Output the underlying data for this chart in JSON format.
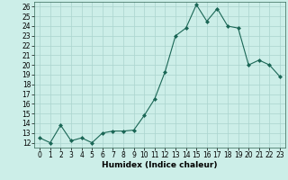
{
  "x": [
    0,
    1,
    2,
    3,
    4,
    5,
    6,
    7,
    8,
    9,
    10,
    11,
    12,
    13,
    14,
    15,
    16,
    17,
    18,
    19,
    20,
    21,
    22,
    23
  ],
  "y": [
    12.5,
    12.0,
    13.8,
    12.2,
    12.5,
    12.0,
    13.0,
    13.2,
    13.2,
    13.3,
    14.8,
    16.5,
    19.3,
    23.0,
    23.8,
    26.2,
    24.5,
    25.8,
    24.0,
    23.8,
    20.0,
    20.5,
    20.0,
    18.8
  ],
  "line_color": "#1a6655",
  "marker": "D",
  "marker_size": 2.0,
  "bg_color": "#cceee8",
  "grid_color": "#aad4ce",
  "xlabel": "Humidex (Indice chaleur)",
  "xlim": [
    -0.5,
    23.5
  ],
  "ylim": [
    11.5,
    26.5
  ],
  "yticks": [
    12,
    13,
    14,
    15,
    16,
    17,
    18,
    19,
    20,
    21,
    22,
    23,
    24,
    25,
    26
  ],
  "xticks": [
    0,
    1,
    2,
    3,
    4,
    5,
    6,
    7,
    8,
    9,
    10,
    11,
    12,
    13,
    14,
    15,
    16,
    17,
    18,
    19,
    20,
    21,
    22,
    23
  ],
  "label_fontsize": 6.5,
  "tick_fontsize": 5.5,
  "spine_color": "#336655",
  "linewidth": 0.8
}
